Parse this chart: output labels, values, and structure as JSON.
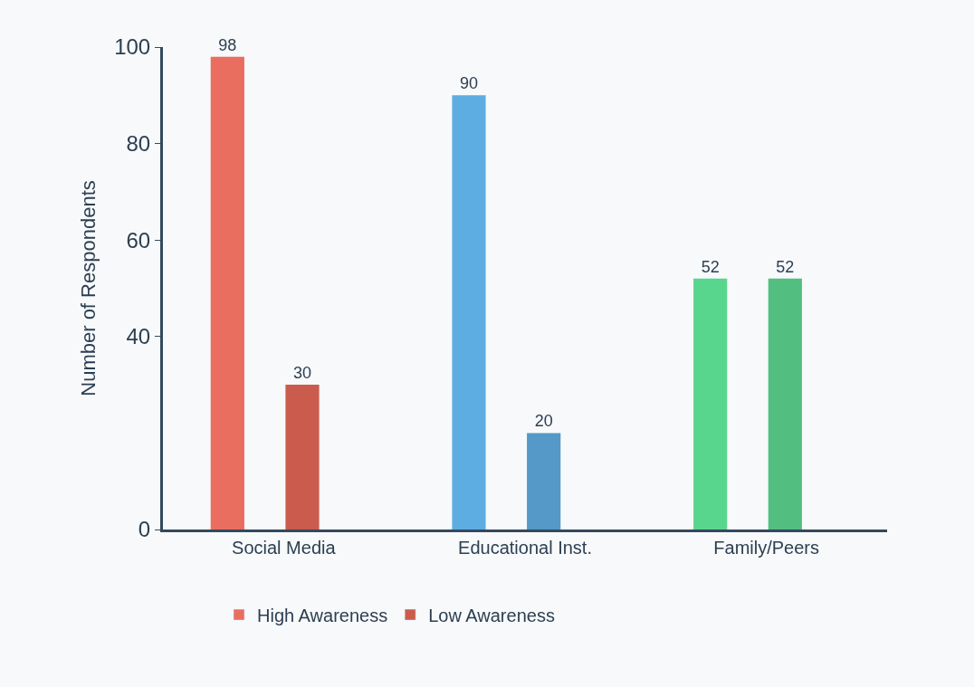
{
  "chart_data": {
    "type": "bar",
    "categories": [
      "Social Media",
      "Educational Inst.",
      "Family/Peers"
    ],
    "ylabel": "Number of Respondents",
    "series": [
      {
        "name": "High Awareness",
        "color": "#e96e60",
        "colors": [
          "#e96e60",
          "#5dade2",
          "#58d68d"
        ],
        "values": [
          98,
          90,
          52
        ]
      },
      {
        "name": "Low Awareness",
        "color": "#cb5b4d",
        "colors": [
          "#cb5b4d",
          "#5499c7",
          "#52be80"
        ],
        "values": [
          30,
          20,
          52
        ]
      }
    ],
    "ylim": [
      0,
      100
    ],
    "yticks": [
      0,
      40,
      60,
      80,
      100
    ],
    "data_labels": true,
    "grid": false,
    "legend": "bottom"
  }
}
